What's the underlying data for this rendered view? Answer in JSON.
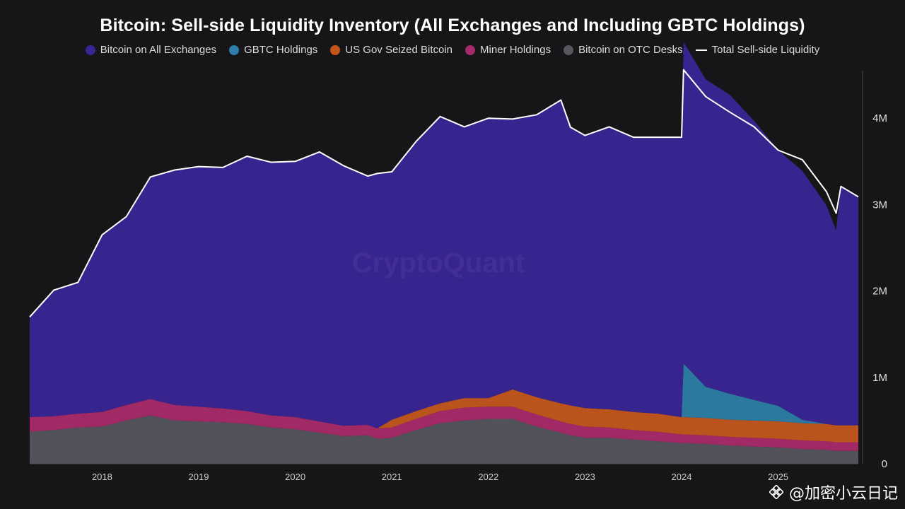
{
  "chart_data": {
    "type": "area",
    "title": "Bitcoin: Sell-side Liquidity Inventory (All Exchanges and Including GBTC Holdings)",
    "xlabel": "",
    "ylabel": "",
    "x_range": [
      2017.25,
      2025.83
    ],
    "ylim": [
      0,
      4550000
    ],
    "x_ticks": [
      {
        "value": 2018,
        "label": "2018"
      },
      {
        "value": 2019,
        "label": "2019"
      },
      {
        "value": 2020,
        "label": "2020"
      },
      {
        "value": 2021,
        "label": "2021"
      },
      {
        "value": 2022,
        "label": "2022"
      },
      {
        "value": 2023,
        "label": "2023"
      },
      {
        "value": 2024,
        "label": "2024"
      },
      {
        "value": 2025,
        "label": "2025"
      }
    ],
    "y_ticks": [
      {
        "value": 0,
        "label": "0"
      },
      {
        "value": 1000000,
        "label": "1M"
      },
      {
        "value": 2000000,
        "label": "2M"
      },
      {
        "value": 3000000,
        "label": "3M"
      },
      {
        "value": 4000000,
        "label": "4M"
      }
    ],
    "x": [
      2017.25,
      2017.5,
      2017.75,
      2018.0,
      2018.25,
      2018.5,
      2018.75,
      2019.0,
      2019.25,
      2019.5,
      2019.75,
      2020.0,
      2020.25,
      2020.5,
      2020.75,
      2020.85,
      2021.0,
      2021.25,
      2021.5,
      2021.75,
      2022.0,
      2022.25,
      2022.5,
      2022.75,
      2022.85,
      2023.0,
      2023.25,
      2023.5,
      2023.75,
      2024.0,
      2024.02,
      2024.25,
      2024.5,
      2024.75,
      2025.0,
      2025.25,
      2025.5,
      2025.6,
      2025.65,
      2025.83
    ],
    "series": [
      {
        "name": "Bitcoin on OTC Desks",
        "color": "#55565e",
        "values": [
          370000,
          390000,
          420000,
          430000,
          500000,
          560000,
          500000,
          490000,
          480000,
          460000,
          420000,
          400000,
          360000,
          320000,
          330000,
          290000,
          300000,
          390000,
          470000,
          500000,
          520000,
          520000,
          430000,
          360000,
          330000,
          300000,
          300000,
          280000,
          260000,
          240000,
          240000,
          230000,
          210000,
          200000,
          190000,
          170000,
          160000,
          150000,
          150000,
          150000
        ]
      },
      {
        "name": "Miner Holdings",
        "color": "#a82a6a",
        "values": [
          170000,
          160000,
          160000,
          170000,
          180000,
          190000,
          180000,
          170000,
          160000,
          150000,
          140000,
          140000,
          130000,
          120000,
          120000,
          120000,
          120000,
          130000,
          140000,
          150000,
          140000,
          140000,
          140000,
          130000,
          130000,
          130000,
          120000,
          110000,
          110000,
          100000,
          100000,
          100000,
          100000,
          100000,
          100000,
          100000,
          100000,
          100000,
          100000,
          100000
        ]
      },
      {
        "name": "US Gov Seized Bitcoin",
        "color": "#c4561c",
        "values": [
          0,
          0,
          0,
          0,
          0,
          0,
          0,
          0,
          0,
          0,
          0,
          0,
          0,
          0,
          0,
          0,
          90000,
          90000,
          90000,
          110000,
          100000,
          200000,
          200000,
          210000,
          215000,
          215000,
          210000,
          210000,
          210000,
          200000,
          200000,
          200000,
          200000,
          200000,
          200000,
          200000,
          200000,
          195000,
          195000,
          195000
        ]
      },
      {
        "name": "GBTC Holdings",
        "color": "#2d7ea8",
        "values": [
          0,
          0,
          0,
          0,
          0,
          0,
          0,
          0,
          0,
          0,
          0,
          0,
          0,
          0,
          0,
          0,
          0,
          0,
          0,
          0,
          0,
          0,
          0,
          0,
          0,
          0,
          0,
          0,
          0,
          0,
          620000,
          360000,
          300000,
          240000,
          180000,
          40000,
          0,
          0,
          0,
          0
        ]
      },
      {
        "name": "Bitcoin on All Exchanges",
        "color": "#3a2596",
        "values": [
          1160000,
          1460000,
          1520000,
          2050000,
          2180000,
          2570000,
          2720000,
          2780000,
          2790000,
          2950000,
          2930000,
          2960000,
          3120000,
          3010000,
          2880000,
          2950000,
          2870000,
          3120000,
          3320000,
          3140000,
          3240000,
          3130000,
          3270000,
          3510000,
          3220000,
          3155000,
          3270000,
          3180000,
          3200000,
          3240000,
          3720000,
          3560000,
          3460000,
          3230000,
          2960000,
          2880000,
          2530000,
          2255000,
          2765000,
          2645000
        ]
      }
    ],
    "total_line": {
      "name": "Total Sell-side Liquidity",
      "color": "#ffffff",
      "values": [
        1700000,
        2010000,
        2100000,
        2650000,
        2860000,
        3320000,
        3400000,
        3440000,
        3430000,
        3560000,
        3490000,
        3500000,
        3610000,
        3450000,
        3330000,
        3360000,
        3380000,
        3730000,
        4020000,
        3900000,
        4000000,
        3990000,
        4040000,
        4210000,
        3895000,
        3800000,
        3900000,
        3780000,
        3780000,
        3780000,
        4560000,
        4250000,
        4070000,
        3900000,
        3630000,
        3520000,
        3150000,
        2900000,
        3210000,
        3090000
      ]
    },
    "legend": [
      {
        "label": "Bitcoin on All Exchanges",
        "color": "#3a2596"
      },
      {
        "label": "GBTC Holdings",
        "color": "#2d7ea8"
      },
      {
        "label": "US Gov Seized Bitcoin",
        "color": "#c4561c"
      },
      {
        "label": "Miner Holdings",
        "color": "#a82a6a"
      },
      {
        "label": "Bitcoin on OTC Desks",
        "color": "#55565e"
      },
      {
        "label": "Total Sell-side Liquidity",
        "color": "#ffffff"
      }
    ],
    "watermark": "CryptoQuant",
    "legend_position": "top-center",
    "grid": false
  },
  "credit": {
    "text": "@加密小云日记"
  }
}
